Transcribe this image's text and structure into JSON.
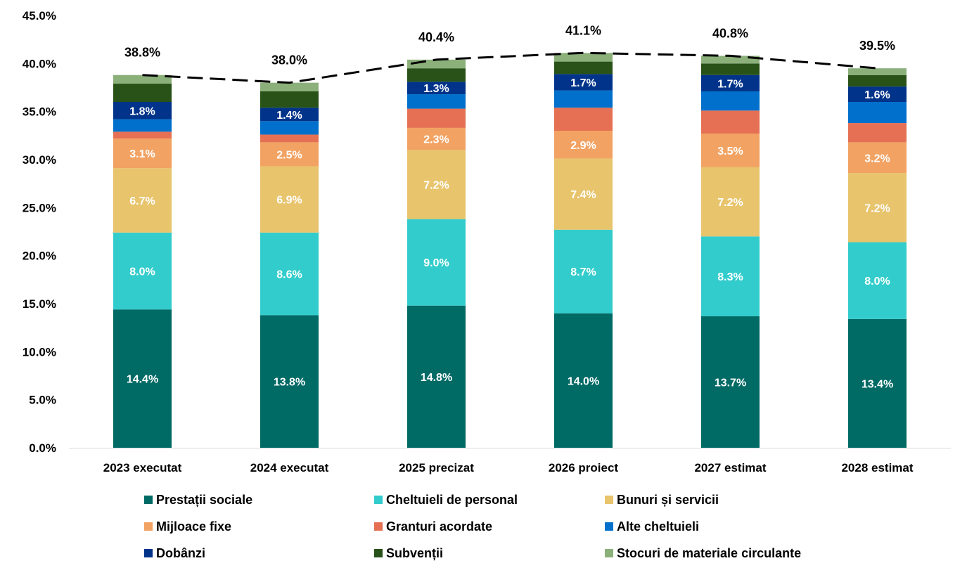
{
  "chart_data": {
    "type": "bar",
    "stacked": true,
    "title": "",
    "xlabel": "",
    "ylabel": "",
    "ylim": [
      0,
      45
    ],
    "y_ticks": [
      "0.0%",
      "5.0%",
      "10.0%",
      "15.0%",
      "20.0%",
      "25.0%",
      "30.0%",
      "35.0%",
      "40.0%",
      "45.0%"
    ],
    "grid": false,
    "legend_position": "bottom",
    "categories": [
      "2023 executat",
      "2024 executat",
      "2025 precizat",
      "2026 proiect",
      "2027 estimat",
      "2028 estimat"
    ],
    "series": [
      {
        "name": "Prestații sociale",
        "color": "#006A65",
        "values": [
          14.4,
          13.8,
          14.8,
          14.0,
          13.7,
          13.4
        ],
        "labeled": true
      },
      {
        "name": "Cheltuieli de personal",
        "color": "#33CCCC",
        "values": [
          8.0,
          8.6,
          9.0,
          8.7,
          8.3,
          8.0
        ],
        "labeled": true
      },
      {
        "name": "Bunuri și servicii",
        "color": "#E8C46C",
        "values": [
          6.7,
          6.9,
          7.2,
          7.4,
          7.2,
          7.2
        ],
        "labeled": true
      },
      {
        "name": "Mijloace fixe",
        "color": "#F2A262",
        "values": [
          3.1,
          2.5,
          2.3,
          2.9,
          3.5,
          3.2
        ],
        "labeled": true
      },
      {
        "name": "Granturi acordate",
        "color": "#E57053",
        "values": [
          0.7,
          0.8,
          2.0,
          2.4,
          2.4,
          2.0
        ],
        "labeled": false
      },
      {
        "name": "Alte cheltuieli",
        "color": "#0070CC",
        "values": [
          1.3,
          1.4,
          1.5,
          1.8,
          2.0,
          2.2
        ],
        "labeled": false
      },
      {
        "name": "Dobânzi",
        "color": "#003389",
        "values": [
          1.8,
          1.4,
          1.3,
          1.7,
          1.7,
          1.6
        ],
        "labeled": true
      },
      {
        "name": "Subvenții",
        "color": "#285218",
        "values": [
          1.9,
          1.7,
          1.4,
          1.3,
          1.2,
          1.2
        ],
        "labeled": false
      },
      {
        "name": "Stocuri de materiale circulante",
        "color": "#8BB07A",
        "values": [
          0.9,
          0.9,
          0.9,
          0.9,
          0.8,
          0.7
        ],
        "labeled": false
      }
    ],
    "total_line": {
      "style": "dashed",
      "color": "#000000",
      "values": [
        38.8,
        38.0,
        40.4,
        41.1,
        40.8,
        39.5
      ],
      "labels": [
        "38.8%",
        "38.0%",
        "40.4%",
        "41.1%",
        "40.8%",
        "39.5%"
      ]
    }
  }
}
